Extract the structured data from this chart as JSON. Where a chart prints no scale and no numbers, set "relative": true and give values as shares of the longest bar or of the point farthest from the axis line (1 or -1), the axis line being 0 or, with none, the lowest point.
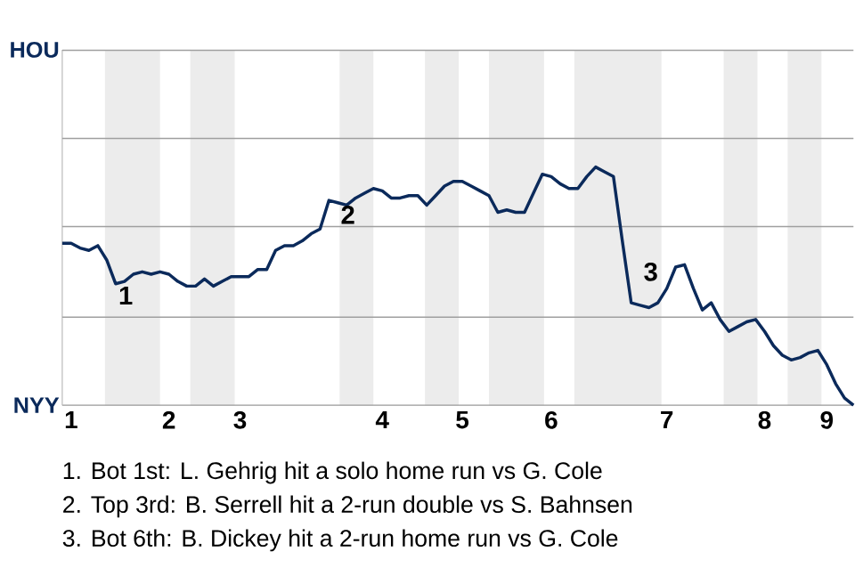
{
  "chart_data": {
    "type": "line",
    "relative": true,
    "categories": [
      null,
      "1",
      null,
      null,
      null,
      null,
      null,
      null,
      null,
      null,
      null,
      null,
      "2",
      null,
      null,
      null,
      null,
      null,
      null,
      null,
      "3",
      null,
      null,
      null,
      null,
      null,
      null,
      null,
      null,
      null,
      null,
      null,
      null,
      null,
      null,
      null,
      "4",
      null,
      null,
      null,
      null,
      null,
      null,
      null,
      null,
      "5",
      null,
      null,
      null,
      null,
      null,
      null,
      null,
      null,
      null,
      "6",
      null,
      null,
      null,
      null,
      null,
      null,
      null,
      null,
      null,
      null,
      null,
      null,
      "7",
      null,
      null,
      null,
      null,
      null,
      null,
      null,
      null,
      null,
      null,
      "8",
      null,
      null,
      null,
      null,
      null,
      null,
      "9",
      null,
      null,
      null
    ],
    "series": [
      {
        "color": "#0b2a5b",
        "values": [
          0.68,
          0.68,
          0.66,
          0.65,
          0.67,
          0.61,
          0.51,
          0.52,
          0.55,
          0.56,
          0.55,
          0.56,
          0.55,
          0.52,
          0.5,
          0.5,
          0.53,
          0.5,
          0.52,
          0.54,
          0.54,
          0.54,
          0.57,
          0.57,
          0.65,
          0.67,
          0.67,
          0.69,
          0.72,
          0.74,
          0.86,
          0.85,
          0.84,
          0.87,
          0.89,
          0.91,
          0.9,
          0.87,
          0.87,
          0.88,
          0.88,
          0.84,
          0.88,
          0.92,
          0.94,
          0.94,
          0.92,
          0.9,
          0.88,
          0.81,
          0.82,
          0.81,
          0.81,
          0.89,
          0.97,
          0.96,
          0.93,
          0.91,
          0.91,
          0.96,
          1,
          0.98,
          0.96,
          0.69,
          0.43,
          0.42,
          0.41,
          0.43,
          0.49,
          0.58,
          0.59,
          0.49,
          0.4,
          0.43,
          0.36,
          0.31,
          0.33,
          0.35,
          0.36,
          0.31,
          0.25,
          0.21,
          0.19,
          0.2,
          0.22,
          0.23,
          0.17,
          0.09,
          0.03,
          0
        ]
      }
    ],
    "ref_lines": [
      {
        "axis": "y",
        "value": 0.37,
        "color": "#9f9f9f"
      },
      {
        "axis": "y",
        "value": 0.75,
        "color": "#9f9f9f"
      },
      {
        "axis": "y",
        "value": 1.12,
        "color": "#9f9f9f"
      },
      {
        "axis": "y",
        "value": 1.49,
        "color": "#9f9f9f"
      }
    ],
    "marker": "none",
    "line_style": "solid",
    "annotations": [
      "HOU",
      "NYY",
      {
        "text": "1",
        "y": 0.51
      },
      {
        "text": "2",
        "y": 0.85
      },
      {
        "text": "3",
        "y": 0.43
      },
      "1. Bot 1st: L. Gehrig hit a solo home run vs G. Cole",
      "2. Top 3rd: B. Serrell hit a 2-run double vs S. Bahnsen",
      "3. Bot 6th: B. Dickey hit a 2-run home run vs G. Cole"
    ]
  }
}
